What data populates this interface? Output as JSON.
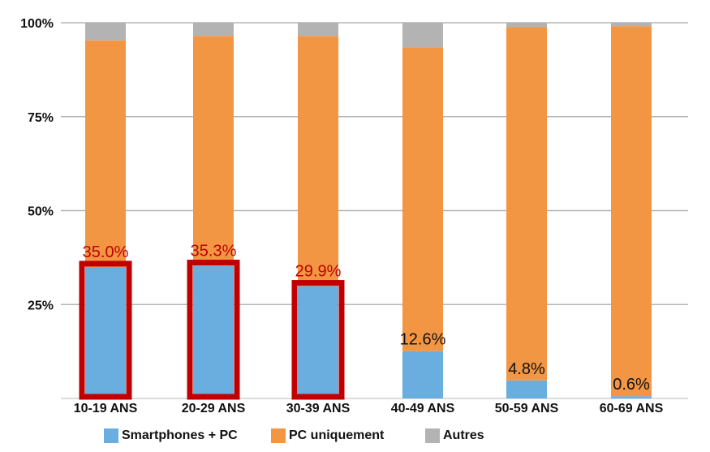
{
  "chart_data": {
    "type": "bar",
    "stacked": true,
    "categories": [
      "10-19 ANS",
      "20-29 ANS",
      "30-39 ANS",
      "40-49 ANS",
      "50-59 ANS",
      "60-69 ANS"
    ],
    "series": [
      {
        "name": "Smartphones + PC",
        "color": "#6aaee0",
        "values": [
          35.0,
          35.3,
          29.9,
          12.6,
          4.8,
          0.6
        ]
      },
      {
        "name": "PC uniquement",
        "color": "#f39644",
        "values": [
          60.3,
          61.2,
          66.6,
          80.8,
          94.0,
          98.5
        ]
      },
      {
        "name": "Autres",
        "color": "#b3b3b3",
        "values": [
          4.7,
          3.5,
          3.5,
          6.6,
          1.2,
          0.9
        ]
      }
    ],
    "data_labels": [
      "35.0%",
      "35.3%",
      "29.9%",
      "12.6%",
      "4.8%",
      "0.6%"
    ],
    "highlighted": [
      true,
      true,
      true,
      false,
      false,
      false
    ],
    "highlight_color": "#c00000",
    "yticks": [
      "100%",
      "75%",
      "50%",
      "25%"
    ],
    "ylim": [
      0,
      100
    ],
    "grid": true,
    "legend_position": "bottom",
    "title": "",
    "xlabel": "",
    "ylabel": ""
  }
}
